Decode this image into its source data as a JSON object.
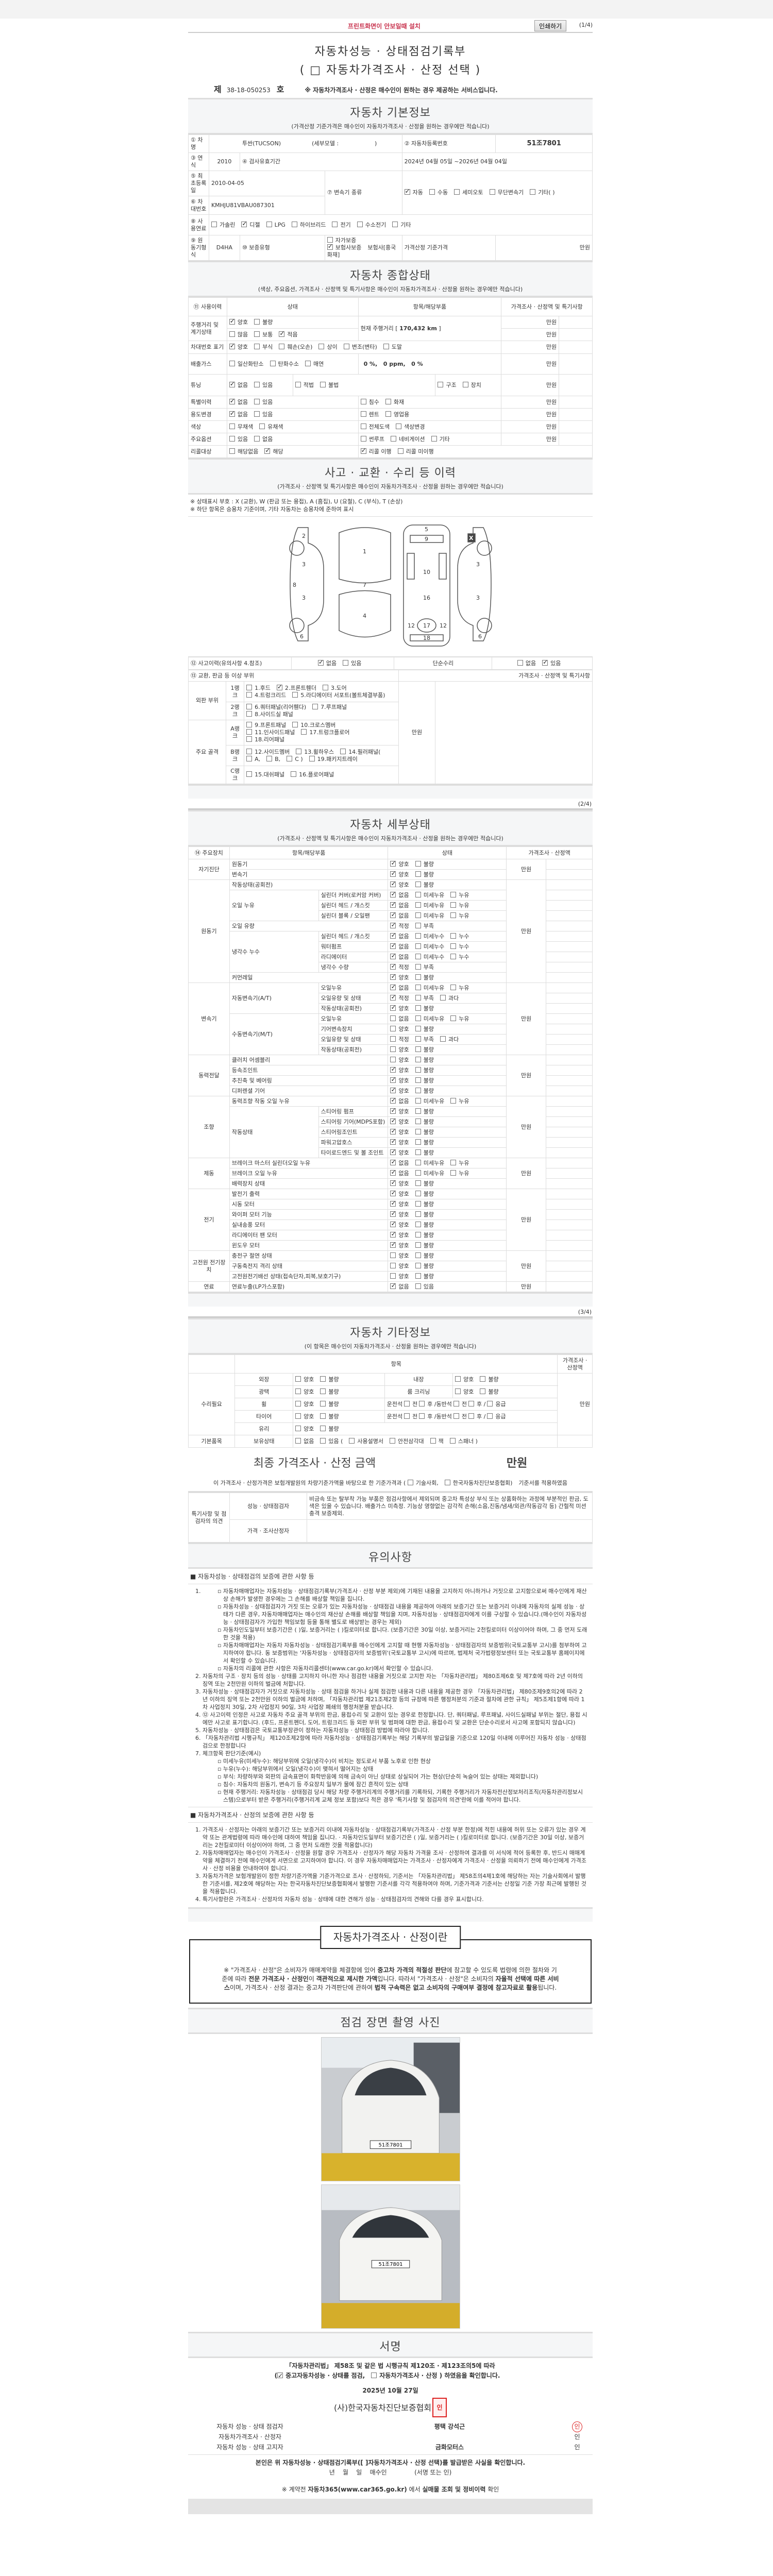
{
  "top": {
    "print_hint": "프린트화면이 안보일때 설치",
    "print_button": "인쇄하기",
    "page1": "(1/4)",
    "page2": "(2/4)",
    "page3": "(3/4)"
  },
  "title": {
    "line1": "자동차성능 · 상태점검기록부",
    "line2": "( □ 자동차가격조사 · 산정 선택 )",
    "no_prefix": "제",
    "doc_no": "38-18-050253",
    "no_suffix": "호",
    "notice": "※ 자동차가격조사 · 산정은 매수인이 원하는 경우 제공하는 서비스입니다."
  },
  "basic": {
    "heading": "자동차 기본정보",
    "sub": "(가격산정 기준가격은 매수인이 자동차가격조사 · 산정을 원하는 경우에만 적습니다)",
    "l_name": "① 차명",
    "name": "투싼(TUCSON)",
    "submodel": "(세부모델 :                    )",
    "l_reg": "② 자동차등록번호",
    "reg": "51조7801",
    "l_year": "③ 연식",
    "year": "2010",
    "l_insp": "④ 검사유효기간",
    "insp": "2024년 04월 05일 ~2026년 04월 04일",
    "l_first": "⑤ 최초등록일",
    "first": "2010-04-05",
    "l_trans": "⑦ 변속기 종류",
    "trans": {
      "o": [
        "자동",
        "수동",
        "세미오토",
        "무단변속기",
        "기타(               )"
      ],
      "c": [
        0
      ]
    },
    "l_vin": "⑥ 차대번호",
    "vin": "KMHJU81VBAU087301",
    "l_fuel": "⑧ 사용연료",
    "fuel": {
      "o": [
        "가솔린",
        "디젤",
        "LPG",
        "하이브리드",
        "전기",
        "수소전기",
        "기타"
      ],
      "c": [
        1
      ]
    },
    "l_engine": "⑨ 원동기형식",
    "engine": "D4HA",
    "l_warranty": "⑩ 보증유형",
    "warranty": {
      "o": [
        "자가보증",
        "보험사보증"
      ],
      "c": [
        1
      ]
    },
    "insurer": "보험사[흥국화재]",
    "l_base_price": "가격산정 기준가격",
    "unit": "만원"
  },
  "status": {
    "heading": "자동차 종합상태",
    "sub": "(색상, 주요옵션, 가격조사 · 산정액 및 특기사항은 매수인이 자동차가격조사 · 산정을 원하는 경우에만 적습니다)",
    "h_use": "⑪ 사용이력",
    "h_state": "상태",
    "h_item": "항목/해당부품",
    "h_price": "가격조사 · 산정액 및 특기사항",
    "unit": "만원",
    "mileage_label": "주행거리 및 계기상태",
    "mileage_a": {
      "o": [
        "양호",
        "불량"
      ],
      "c": [
        0
      ]
    },
    "mileage_b": {
      "o": [
        "많음",
        "보통",
        "적음"
      ],
      "c": [
        2
      ]
    },
    "mileage_pre": "현재 주행거리 [",
    "mileage": "170,432 km",
    "mileage_post": "]",
    "vin_label": "차대번호 표기",
    "vin_opts": {
      "o": [
        "양호",
        "부식",
        "훼손(오손)",
        "상이",
        "변조(변타)",
        "도말"
      ],
      "c": [
        0
      ]
    },
    "gas_label": "배출가스",
    "gas_opts": {
      "o": [
        "일산화탄소",
        "탄화수소",
        "매연"
      ],
      "c": []
    },
    "gas_values": "0 %,   0 ppm,   0 %",
    "tuning_label": "튜닝",
    "tuning_a": {
      "o": [
        "없음",
        "있음"
      ],
      "c": [
        0
      ]
    },
    "tuning_b": {
      "o": [
        "적법",
        "불법"
      ],
      "c": []
    },
    "tuning_c": {
      "o": [
        "구조",
        "장치"
      ],
      "c": []
    },
    "special_label": "특별이력",
    "special_a": {
      "o": [
        "없음",
        "있음"
      ],
      "c": [
        0
      ]
    },
    "special_b": {
      "o": [
        "침수",
        "화재"
      ],
      "c": []
    },
    "usage_label": "용도변경",
    "usage_a": {
      "o": [
        "없음",
        "있음"
      ],
      "c": [
        0
      ]
    },
    "usage_b": {
      "o": [
        "렌트",
        "영업용"
      ],
      "c": []
    },
    "color_label": "색상",
    "color_a": {
      "o": [
        "무채색",
        "유채색"
      ],
      "c": []
    },
    "color_b": {
      "o": [
        "전체도색",
        "색상변경"
      ],
      "c": []
    },
    "option_label": "주요옵션",
    "option_a": {
      "o": [
        "있음",
        "없음"
      ],
      "c": []
    },
    "option_b": {
      "o": [
        "썬루프",
        "네비게이션",
        "기타"
      ],
      "c": []
    },
    "recall_label": "리콜대상",
    "recall_a": {
      "o": [
        "해당없음",
        "해당"
      ],
      "c": [
        1
      ]
    },
    "recall_b": {
      "o": [
        "리콜 이행",
        "리콜 미이행"
      ],
      "c": [
        0
      ]
    }
  },
  "accident": {
    "heading": "사고 · 교환 · 수리 등 이력",
    "sub": "(가격조사 · 산정액 및 특기사항은 매수인이 자동차가격조사 · 산정을 원하는 경우에만 적습니다)",
    "note1": "※ 상태표시 부호 : X (교환), W (판금 또는 용접), A (흠집), U (요철), C (부식), T (손상)",
    "note2": "※ 하단 항목은 승용차 기준이며, 기타 자동차는 승용차에 준하여 표시",
    "diagram_marks": [
      "X"
    ],
    "history_label": "⑫ 사고이력(유의사항 4.참조)",
    "history": {
      "o": [
        "없음",
        "있음"
      ],
      "c": [
        0
      ]
    },
    "simple_label": "단순수리",
    "simple": {
      "o": [
        "없음",
        "있음"
      ],
      "c": [
        1
      ]
    },
    "parts_label": "⑬ 교환, 판금 등 이상 부위",
    "parts_price": "가격조사 · 산정액 및 특기사항",
    "unit": "만원",
    "outer": "외판 부위",
    "frame": "주요 골격",
    "ranks": [
      {
        "name": "1랭크",
        "opts": {
          "o": [
            "1.후드",
            "2.프론트휀더",
            "3.도어",
            "4.트렁크리드",
            "5.라디에이터 서포트(볼트체결부품)"
          ],
          "c": [
            1
          ]
        }
      },
      {
        "name": "2랭크",
        "opts": {
          "o": [
            "6.쿼터패널(리어휀다)",
            "7.루프패널",
            "8.사이드실 패널"
          ],
          "c": []
        }
      },
      {
        "name": "A랭크",
        "opts": {
          "o": [
            "9.프론트패널",
            "10.크로스멤버",
            "11.인사이드패널",
            "17.트렁크플로어",
            "18.리어패널"
          ],
          "c": []
        }
      },
      {
        "name": "B랭크",
        "opts": {
          "o": [
            "12.사이드멤버",
            "13.휠하우스",
            "14.필러패널(",
            "A,",
            "B,",
            "C )",
            "19.패키지트레이"
          ],
          "c": []
        }
      },
      {
        "name": "C랭크",
        "opts": {
          "o": [
            "15.대쉬패널",
            "16.플로어패널"
          ],
          "c": []
        }
      }
    ]
  },
  "detail": {
    "heading": "자동차 세부상태",
    "sub": "(가격조사 · 산정액 및 특기사항은 매수인이 자동차가격조사 · 산정을 원하는 경우에만 적습니다)",
    "h_main": "⑭ 주요장치",
    "h_item": "항목/해당부품",
    "h_state": "상태",
    "h_price": "가격조사 · 산정액",
    "unit": "만원",
    "rows": [
      {
        "g": "자기진단",
        "i": "원동기",
        "o": [
          "양호",
          "불량"
        ],
        "c": [
          0
        ]
      },
      {
        "g": "자기진단",
        "i": "변속기",
        "o": [
          "양호",
          "불량"
        ],
        "c": [
          0
        ]
      },
      {
        "g": "원동기",
        "i": "작동상태(공회전)",
        "o": [
          "양호",
          "불량"
        ],
        "c": [
          0
        ]
      },
      {
        "g": "원동기",
        "i": "오일 누유",
        "s": "실린더 커버(로커암 커버)",
        "o": [
          "없음",
          "미세누유",
          "누유"
        ],
        "c": [
          0
        ]
      },
      {
        "g": "원동기",
        "i": "오일 누유",
        "s": "실린더 헤드 / 개스킷",
        "o": [
          "없음",
          "미세누유",
          "누유"
        ],
        "c": [
          0
        ]
      },
      {
        "g": "원동기",
        "i": "오일 누유",
        "s": "실린더 블록 / 오일팬",
        "o": [
          "없음",
          "미세누유",
          "누유"
        ],
        "c": [
          0
        ]
      },
      {
        "g": "원동기",
        "i": "오일 유량",
        "o": [
          "적정",
          "부족"
        ],
        "c": [
          0
        ]
      },
      {
        "g": "원동기",
        "i": "냉각수 누수",
        "s": "실린더 헤드 / 개스킷",
        "o": [
          "없음",
          "미세누수",
          "누수"
        ],
        "c": [
          0
        ]
      },
      {
        "g": "원동기",
        "i": "냉각수 누수",
        "s": "워터펌프",
        "o": [
          "없음",
          "미세누수",
          "누수"
        ],
        "c": [
          0
        ]
      },
      {
        "g": "원동기",
        "i": "냉각수 누수",
        "s": "라디에이터",
        "o": [
          "없음",
          "미세누수",
          "누수"
        ],
        "c": [
          0
        ]
      },
      {
        "g": "원동기",
        "i": "냉각수 누수",
        "s": "냉각수 수량",
        "o": [
          "적정",
          "부족"
        ],
        "c": [
          0
        ]
      },
      {
        "g": "원동기",
        "i": "커먼레일",
        "o": [
          "양호",
          "불량"
        ],
        "c": [
          0
        ]
      },
      {
        "g": "변속기",
        "i": "자동변속기(A/T)",
        "s": "오일누유",
        "o": [
          "없음",
          "미세누유",
          "누유"
        ],
        "c": [
          0
        ]
      },
      {
        "g": "변속기",
        "i": "자동변속기(A/T)",
        "s": "오일유량 및 상태",
        "o": [
          "적정",
          "부족",
          "과다"
        ],
        "c": [
          0
        ]
      },
      {
        "g": "변속기",
        "i": "자동변속기(A/T)",
        "s": "작동상태(공회전)",
        "o": [
          "양호",
          "불량"
        ],
        "c": [
          0
        ]
      },
      {
        "g": "변속기",
        "i": "수동변속기(M/T)",
        "s": "오일누유",
        "o": [
          "없음",
          "미세누유",
          "누유"
        ],
        "c": []
      },
      {
        "g": "변속기",
        "i": "수동변속기(M/T)",
        "s": "기어변속장치",
        "o": [
          "양호",
          "불량"
        ],
        "c": []
      },
      {
        "g": "변속기",
        "i": "수동변속기(M/T)",
        "s": "오일유량 및 상태",
        "o": [
          "적정",
          "부족",
          "과다"
        ],
        "c": []
      },
      {
        "g": "변속기",
        "i": "수동변속기(M/T)",
        "s": "작동상태(공회전)",
        "o": [
          "양호",
          "불량"
        ],
        "c": []
      },
      {
        "g": "동력전달",
        "i": "클러치 어셈블리",
        "o": [
          "양호",
          "불량"
        ],
        "c": []
      },
      {
        "g": "동력전달",
        "i": "등속조인트",
        "o": [
          "양호",
          "불량"
        ],
        "c": [
          0
        ]
      },
      {
        "g": "동력전달",
        "i": "추진축 및 베어링",
        "o": [
          "양호",
          "불량"
        ],
        "c": [
          0
        ]
      },
      {
        "g": "동력전달",
        "i": "디퍼렌셜 기어",
        "o": [
          "양호",
          "불량"
        ],
        "c": [
          0
        ]
      },
      {
        "g": "조향",
        "i": "동력조향 작동 오일 누유",
        "o": [
          "없음",
          "미세누유",
          "누유"
        ],
        "c": [
          0
        ]
      },
      {
        "g": "조향",
        "i": "작동상태",
        "s": "스티어링 펌프",
        "o": [
          "양호",
          "불량"
        ],
        "c": [
          0
        ]
      },
      {
        "g": "조향",
        "i": "작동상태",
        "s": "스티어링 기어(MDPS포함)",
        "o": [
          "양호",
          "불량"
        ],
        "c": [
          0
        ]
      },
      {
        "g": "조향",
        "i": "작동상태",
        "s": "스티어링조인트",
        "o": [
          "양호",
          "불량"
        ],
        "c": [
          0
        ]
      },
      {
        "g": "조향",
        "i": "작동상태",
        "s": "파워고압호스",
        "o": [
          "양호",
          "불량"
        ],
        "c": [
          0
        ]
      },
      {
        "g": "조향",
        "i": "작동상태",
        "s": "타이로드엔드 및 볼 조인트",
        "o": [
          "양호",
          "불량"
        ],
        "c": [
          0
        ]
      },
      {
        "g": "제동",
        "i": "브레이크 마스터 실린더오일 누유",
        "o": [
          "없음",
          "미세누유",
          "누유"
        ],
        "c": [
          0
        ]
      },
      {
        "g": "제동",
        "i": "브레이크 오일 누유",
        "o": [
          "없음",
          "미세누유",
          "누유"
        ],
        "c": [
          0
        ]
      },
      {
        "g": "제동",
        "i": "배력장치 상태",
        "o": [
          "양호",
          "불량"
        ],
        "c": [
          0
        ]
      },
      {
        "g": "전기",
        "i": "발전기 출력",
        "o": [
          "양호",
          "불량"
        ],
        "c": [
          0
        ]
      },
      {
        "g": "전기",
        "i": "시동 모터",
        "o": [
          "양호",
          "불량"
        ],
        "c": [
          0
        ]
      },
      {
        "g": "전기",
        "i": "와이퍼 모터 기능",
        "o": [
          "양호",
          "불량"
        ],
        "c": [
          0
        ]
      },
      {
        "g": "전기",
        "i": "실내송풍 모터",
        "o": [
          "양호",
          "불량"
        ],
        "c": [
          0
        ]
      },
      {
        "g": "전기",
        "i": "라디에이터 팬 모터",
        "o": [
          "양호",
          "불량"
        ],
        "c": [
          0
        ]
      },
      {
        "g": "전기",
        "i": "윈도우 모터",
        "o": [
          "양호",
          "불량"
        ],
        "c": [
          0
        ]
      },
      {
        "g": "고전원 전기장치",
        "i": "충전구 절연 상태",
        "o": [
          "양호",
          "불량"
        ],
        "c": []
      },
      {
        "g": "고전원 전기장치",
        "i": "구동축전지 격리 상태",
        "o": [
          "양호",
          "불량"
        ],
        "c": []
      },
      {
        "g": "고전원 전기장치",
        "i": "고전원전기배선 상태(접속단자,피복,보호기구)",
        "o": [
          "양호",
          "불량"
        ],
        "c": []
      },
      {
        "g": "연료",
        "i": "연료누출(LP가스포함)",
        "o": [
          "없음",
          "있음"
        ],
        "c": [
          0
        ]
      }
    ]
  },
  "other": {
    "heading": "자동차 기타정보",
    "sub": "(이 항목은 매수인이 자동차가격조사 · 산정을 원하는 경우에만 적습니다)",
    "h_item": "항목",
    "h_price": "가격조사 · 산정액",
    "repair": "수리필요",
    "unit": "만원",
    "exterior": "외장",
    "interior": "내장",
    "polish": "광택",
    "cleaning": "룸 크리닝",
    "wheel": "휠",
    "tire": "타이어",
    "glass": "유리",
    "gb": {
      "o": [
        "양호",
        "불량"
      ],
      "c": []
    },
    "pos_driver": "운전석",
    "pos_front": "전",
    "pos_rear": "후 /",
    "pos_passenger": "동반석",
    "pos_emergency": "응급",
    "basic_items": "기본품목",
    "holding": "보유상태",
    "hold_opts": {
      "o": [
        "없음",
        "있음 ("
      ],
      "c": []
    },
    "hold_items": {
      "o": [
        "사용설명서",
        "안전삼각대",
        "잭",
        "스패너 )"
      ],
      "c": []
    }
  },
  "final": {
    "label": "최종 가격조사 · 산정 금액",
    "unit": "만원",
    "stmt_pre": "이 가격조사 · 산정가격은 보험개발원의 차량기준가액을 바탕으로 한 기준가격과 (",
    "stmt_opts": {
      "o": [
        "기술사회,",
        "한국자동차진단보증협회)"
      ],
      "c": []
    },
    "stmt_post": "기준서를 적용하였음",
    "opinion_label": "특기사항 및 점검자의 의견",
    "inspector": "성능 · 상태점검자",
    "inspector_text": "비금속 또는 탈부착 가능 부품은 점검사항에서 제외되며 중고차 특성상 부식 또는 상품화하는 과정에 부분적인 판금, 도색은 있을 수 있습니다. 배출가스 미측정. 기능상 영향없는 감각적 손해(소음,진동/냄새/외관/작동감각 등) 간헐적 미션충격 보증제외.",
    "appraiser": "가격 · 조사산정자",
    "appraiser_text": ""
  },
  "notes": {
    "heading": "유의사항",
    "s1_title": "■ 자동차성능 · 상태점검의 보증에 관한 사항 등",
    "s1_item1_subs": [
      "자동차매매업자는 자동차성능 · 상태점검기록부(가격조사 · 산정 부분 제외)에 기재된 내용을 고지하지 아니하거나 거짓으로 고지함으로써 매수인에게 재산상 손해가 발생한 경우에는 그 손해를 배상할 책임을 집니다.",
      "자동차성능 · 상태점검자가 거짓 또는 오류가 있는 자동차성능 · 상태점검 내용을 제공하여 아래의 보증기간 또는 보증거리 이내에 자동차의 실제 성능 · 상태가 다른 경우, 자동차매매업자는 매수인의 재산상 손해를 배상할 책임을 지며, 자동차성능 · 상태점검자에게 이를 구상할 수 있습니다.(매수인이 자동차성능 · 상태점검자가 가입한 책임보험 등을 통해 별도로 배상받는 경우는 제외)",
      "자동차인도일부터 보증기간은 (    )일, 보증거리는 (    )킬로미터로 합니다. (보증기간은 30일 이상, 보증거리는 2천킬로미터 이상이어야 하며, 그 중 먼저 도래한 것을 적용)",
      "자동차매매업자는 자동차 자동차성능 · 상태점검기록부를 매수인에게 고지할 때 현행 자동차성능 · 상태점검자의 보증범위(국토교통부 고시)를 첨부하여 고지하여야 합니다. 동 보증범위는 '자동차성능 · 상태점검자의 보증범위'(국토교통부 고시)에 따르며, 법제처 국가법령정보센터 또는 국토교통부 홈페이지에서 확인할 수 있습니다.",
      "자동차의 리콜에 관한 사항은 자동차리콜센터(www.car.go.kr)에서 확인할 수 있습니다."
    ],
    "s1_items": [
      "자동차의 구조 · 장치 등의 성능 · 상태를 고지하지 아니한 자나 점검한 내용을 거짓으로 고지한 자는 「자동차관리법」 제80조제6호 및 제7호에 따라 2년 이하의 징역 또는 2천만원 이하의 벌금에 처합니다.",
      "자동차성능 · 상태점검자가 거짓으로 자동차성능 · 상태 점검을 하거나 실제 점검한 내용과 다른 내용을 제공한 경우 「자동차관리법」 제80조제9호의2에 따라 2년 이하의 징역 또는 2천만원 이하의 벌금에 처하며, 「자동차관리법 제21조제2항 등의 규정에 따른 행정처분의 기준과 절차에 관한 규칙」 제5조제1항에 따라 1차 사업정지 30일, 2차 사업정지 90일, 3차 사업장 폐쇄의 행정처분을 받습니다.",
      "⑫ 사고이력 인정은 사고로 자동차 주요 골격 부위의 판금, 용접수리 및 교환이 있는 경우로 한정합니다. 단, 쿼터패널, 루프패널, 사이드실패널 부위는 절단, 용접 시에만 사고로 표기합니다. (후드, 프론트펜더, 도어, 트렁크리드 등 외판 부위 및 범퍼에 대한 판금, 용접수리 및 교환은 단순수리로서 사고에 포함되지 않습니다)",
      "자동차성능 · 상태점검은 국토교통부장관이 정하는 자동차성능 · 상태점검 방법에 따라야 합니다.",
      "「자동차관리법 시행규칙」 제120조제2항에 따라 자동차성능 · 상태점검기록부는 해당 기록부의 발급일을 기준으로 120일 이내에 이루어진 자동차 성능 · 상태점검으로 한정합니다",
      "체크항목 판단기준(예시)"
    ],
    "s1_item7_subs": [
      "미세누유(미세누수): 해당부위에 오일(냉각수)이 비치는 정도로서 부품 노후로 인한 현상",
      "누유(누수): 해당부위에서 오일(냉각수)이 맺혀서 떨어지는 상태",
      "부식: 차량하부와 외판의 금속표면이 화학반응에 의해 금속이 아닌 상태로 상실되어 가는 현상(단순히 녹슬어 있는 상태는 제외합니다)",
      "침수: 자동차의 원동기, 변속기 등 주요장치 일부가 물에 잠긴 흔적이 있는 상태",
      "현재 주행거리: 자동차성능 · 상태점검 당시 해당 차량 주행거리계의 주행거리를 기록하되, 기록한 주행거리가 자동차전산정보처리조직(자동차관리정보시스템)으로부터 받은 주행거리(주행거리계 교체 정보 포함)보다 적은 경우 '특기사항 및 점검자의 의견'란에 이를 적어야 합니다."
    ],
    "s2_title": "■ 자동차가격조사 · 산정의 보증에 관한 사항 등",
    "s2_items": [
      "가격조사 · 산정자는 아래의 보증기간 또는 보증거리 이내에 자동차성능 · 상태점검기록부(가격조사 · 산정 부분 한정)에 적힌 내용에 허위 또는 오류가 있는 경우 계약 또는 관계법령에 따라 매수인에 대하여 책임을 집니다. · 자동차인도일부터 보증기간은 (    )일, 보증거리는 (    )킬로미터로 합니다. (보증기간은 30일 이상, 보증거리는 2천킬로미터 이상이어야 하며, 그 중 먼저 도래한 것을 적용합니다)",
      "자동차매매업자는 매수인이 가격조사 · 산정을 원할 경우 가격조사 · 산정자가 해당 자동차 가격을 조사 · 산정하여 결과를 이 서식에 적어 등록한 후, 반드시 매매계약을 체결하기 전에 매수인에게 서면으로 고지하여야 합니다. 이 경우 자동차매매업자는 가격조사 · 산정자에게 가격조사 · 산정을 의뢰하기 전에 매수인에게 가격조사 · 산정 비용을 안내하여야 합니다.",
      "자동차가격은 보험개발원이 정한 차량기준가액을 기준가격으로 조사 · 산정하되, 기준서는 「자동차관리법」 제58조의4제1호에 해당하는 자는 기술사회에서 발행한 기준서를, 제2호에 해당하는 자는 한국자동차진단보증협회에서 발행한 기준서를 각각 적용하여야 하며, 기준가격과 기준서는 산정일 기준 가장 최근에 발행된 것을 적용합니다.",
      "특기사항란은 가격조사 · 산정자의 자동차 성능 · 상태에 대한 견해가 성능 · 상태점검자의 견해와 다를 경우 표시합니다."
    ]
  },
  "pricebox": {
    "label": "자동차가격조사 · 산정이란",
    "p1": "※ \"가격조사 · 산정\"은 소비자가 매매계약을 체결함에 있어 ",
    "b1": "중고차 가격의 적절성 판단",
    "p2": "에 참고할 수 있도록 법령에 의한 절차와 기준에 따라 ",
    "b2": "전문 가격조사 · 산정인",
    "p3": "이 ",
    "b3": "객관적으로 제시한 가액",
    "p4": "입니다. 따라서 \"가격조사 · 산정\"은 소비자의 ",
    "b4": "자율적 선택에 따른 서비스",
    "p5": "이며, 가격조사 · 산정 결과는 중고차 가격판단에 관하여 ",
    "b5": "법적 구속력은 없고 소비자의 구매여부 결정에 참고자료로 활용",
    "p6": "됩니다."
  },
  "photos": {
    "heading": "점검 장면 촬영 사진",
    "plate": "51조7801"
  },
  "sign": {
    "heading": "서명",
    "law": "「자동차관리법」 제58조 및 같은 법 시행규칙 제120조 · 제123조의5에 따라",
    "confirm_opts": {
      "o": [
        "중고자동차성능 · 상태를 점검,",
        "자동차가격조사 · 산정 ) 하였음을 확인합니다."
      ],
      "c": [
        0
      ]
    },
    "confirm_pre": "(",
    "date": "2025년 10월  27일",
    "org": "(사)한국자동차진단보증협회",
    "seal_text": "인",
    "rows": [
      {
        "k": "자동차 성능 · 상태 점검자",
        "v": "평택 강석근",
        "i": "인"
      },
      {
        "k": "자동차가격조사 · 산정자",
        "v": "",
        "i": "인"
      },
      {
        "k": "자동차 성능 · 상태 고지자",
        "v": "금화모터스",
        "i": "인"
      }
    ],
    "buyer_confirm": "본인은 위 자동차성능 · 상태점검기록부([   ]자동차가격조사 · 산정 선택)를 발급받은 사실을 확인합니다.",
    "buyer_line": "년    월    일    매수인              (서명 또는 인)",
    "footer_pre": "※ 계약전 ",
    "footer_b1": "자동차365(www.car365.go.kr)",
    "footer_mid": " 에서 ",
    "footer_b2": "실매물 조회 및 정비이력",
    "footer_post": " 확인"
  }
}
